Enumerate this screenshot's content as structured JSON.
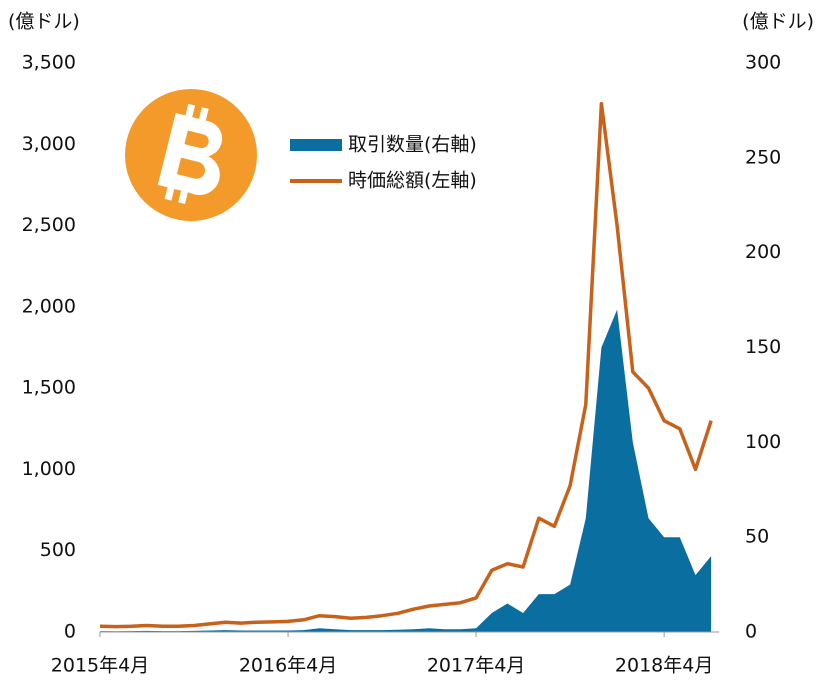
{
  "chart_data": {
    "type": "line-area",
    "legend_position": "top",
    "y_label": "(億ドル)",
    "y2_label": "(億ドル)",
    "categories": [
      "2015年4月",
      null,
      null,
      null,
      null,
      null,
      null,
      null,
      null,
      null,
      null,
      null,
      "2016年4月",
      null,
      null,
      null,
      null,
      null,
      null,
      null,
      null,
      null,
      null,
      null,
      "2017年4月",
      null,
      null,
      null,
      null,
      null,
      null,
      null,
      null,
      null,
      null,
      null,
      "2018年4月",
      null,
      null,
      null
    ],
    "series": [
      {
        "name": "取引数量(右軸)",
        "color": "#0a6fa0",
        "axis": "y2",
        "kind": "area",
        "values": [
          0.5,
          0.4,
          0.5,
          0.6,
          0.5,
          0.5,
          0.6,
          0.8,
          1,
          0.8,
          0.8,
          0.8,
          0.8,
          1,
          2,
          1.5,
          1,
          1,
          1,
          1.2,
          1.5,
          2,
          1.5,
          1.5,
          2,
          10,
          15,
          10,
          20,
          20,
          25,
          60,
          150,
          170,
          100,
          60,
          50,
          50,
          30,
          40
        ]
      },
      {
        "name": "時価総額(左軸)",
        "color": "#c8621b",
        "axis": "y",
        "kind": "line",
        "values": [
          35,
          33,
          35,
          40,
          35,
          35,
          40,
          50,
          60,
          55,
          60,
          62,
          65,
          75,
          100,
          95,
          85,
          90,
          100,
          115,
          140,
          160,
          170,
          180,
          210,
          380,
          420,
          400,
          700,
          650,
          900,
          1400,
          3250,
          2500,
          1600,
          1500,
          1300,
          1250,
          1000,
          1300
        ]
      }
    ],
    "ylim": [
      0,
      3500
    ],
    "yticks": [
      0,
      500,
      {
        "value": 1000,
        "label": "1,000"
      },
      {
        "value": 1500,
        "label": "1,500"
      },
      {
        "value": 2000,
        "label": "2,000"
      },
      {
        "value": 2500,
        "label": "2,500"
      },
      {
        "value": 3000,
        "label": "3,000"
      },
      {
        "value": 3500,
        "label": "3,500"
      }
    ],
    "y2lim": [
      0,
      300
    ],
    "y2ticks": [
      0,
      50,
      100,
      150,
      200,
      250,
      300
    ]
  }
}
